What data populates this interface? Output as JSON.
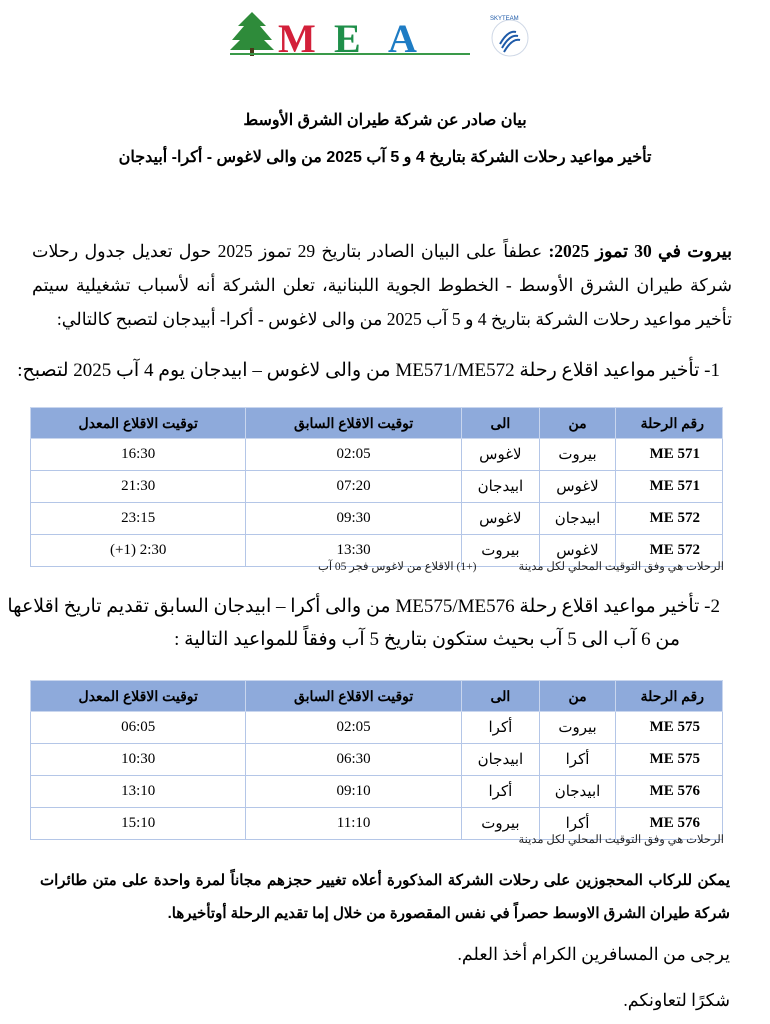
{
  "logo": {
    "text": "MEA",
    "skyteam": "SKYTEAM",
    "colors": {
      "cedar": "#2e8b3a",
      "M": "#d3203a",
      "E": "#1f8f4a",
      "A": "#1e7cc4"
    }
  },
  "header": {
    "title": "بيان صادر عن شركة طيران الشرق الأوسط",
    "subtitle": "تأخير مواعيد رحلات الشركة بتاريخ  4 و 5 آب 2025 من والى لاغوس - أكرا- أبيدجان"
  },
  "intro": {
    "lead": "بيروت في  30 تموز 2025:",
    "body": " عطفاً على البيان الصادر بتاريخ 29 تموز 2025 حول تعديل جدول رحلات شركة طيران الشرق الأوسط - الخطوط الجوية اللبنانية، تعلن الشركة أنه لأسباب تشغيلية سيتم تأخير مواعيد رحلات الشركة بتاريخ 4  و 5 آب 2025 من والى لاغوس - أكرا- أبيدجان لتصبح كالتالي:"
  },
  "section1": {
    "heading": "1-  تأخير مواعيد اقلاع رحلة ME571/ME572 من والى لاغوس – ابيدجان يوم 4 آب 2025 لتصبح:",
    "columns": [
      "رقم الرحلة",
      "من",
      "الى",
      "توقيت الاقلاع السابق",
      "توقيت الاقلاع المعدل"
    ],
    "rows": [
      [
        "ME 571",
        "بيروت",
        "لاغوس",
        "02:05",
        "16:30"
      ],
      [
        "ME 571",
        "لاغوس",
        "ابيدجان",
        "07:20",
        "21:30"
      ],
      [
        "ME 572",
        "ابيدجان",
        "لاغوس",
        "09:30",
        "23:15"
      ],
      [
        "ME 572",
        "لاغوس",
        "بيروت",
        "13:30",
        "(+1) 2:30"
      ]
    ],
    "note_local": "الرحلات هي وفق التوقيت المحلي لكل مدينة",
    "note_plus": "(+1) الاقلاع من لاغوس فجر 05 آب"
  },
  "section2": {
    "heading_line1": "2-  تأخير مواعيد اقلاع رحلة ME575/ME576 من والى أكرا – ابيدجان السابق تقديم تاريخ اقلاعها",
    "heading_line2": "من 6 آب الى 5 آب بحيث ستكون بتاريخ 5 آب وفقاً للمواعيد التالية :",
    "columns": [
      "رقم الرحلة",
      "من",
      "الى",
      "توقيت الاقلاع السابق",
      "توقيت الاقلاع المعدل"
    ],
    "rows": [
      [
        "ME 575",
        "بيروت",
        "أكرا",
        "02:05",
        "06:05"
      ],
      [
        "ME 575",
        "أكرا",
        "ابيدجان",
        "06:30",
        "10:30"
      ],
      [
        "ME 576",
        "ابيدجان",
        "أكرا",
        "09:10",
        "13:10"
      ],
      [
        "ME 576",
        "أكرا",
        "بيروت",
        "11:10",
        "15:10"
      ]
    ],
    "note_local": "الرحلات هي وفق التوقيت المحلي لكل مدينة"
  },
  "closing": {
    "rebooking": "يمكن للركاب المحجوزين على رحلات الشركة المذكورة أعلاه تغيير حجزهم مجاناً لمرة واحدة على متن طائرات شركة طيران الشرق الاوسط حصراً في نفس المقصورة من خلال إما تقديم الرحلة أوتأخيرها.",
    "notice": "يرجى من المسافرين الكرام أخذ العلم.",
    "thanks": "شكرًا لتعاونكم."
  },
  "table_header_color": "#8eaadb"
}
